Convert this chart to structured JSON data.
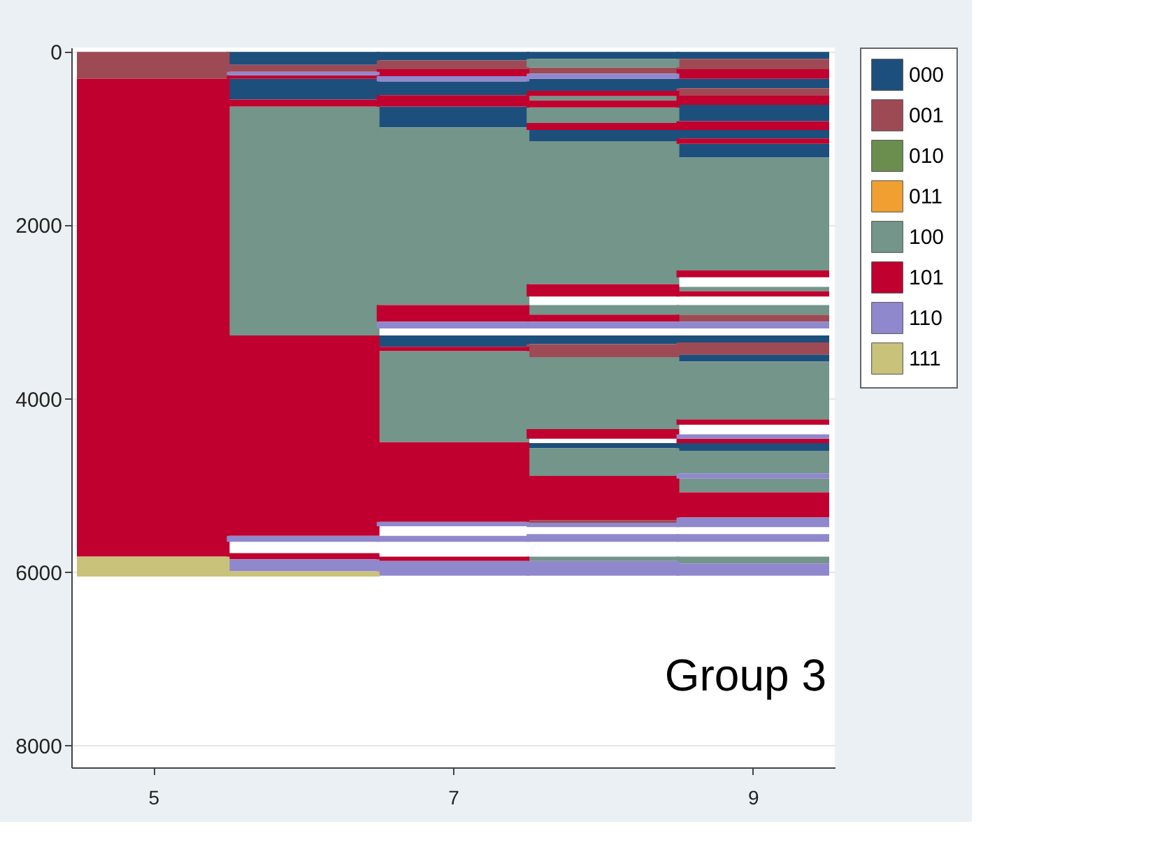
{
  "chart_data": {
    "type": "bar",
    "annotations": [
      "Group 3"
    ],
    "xlim": [
      4.5,
      9.5
    ],
    "xticks": [
      5,
      7,
      9
    ],
    "ylim": [
      8250,
      -50
    ],
    "yticks": [
      0,
      2000,
      4000,
      6000,
      8000
    ],
    "grid": "y",
    "legend": "right",
    "series": [
      {
        "name": "000",
        "color": "#1d4f7c",
        "x": [
          6,
          7,
          8,
          9
        ],
        "base": [
          0,
          0,
          0,
          0
        ],
        "values": [
          150,
          100,
          80,
          80
        ]
      },
      {
        "color": "#1d4f7c",
        "x": [
          6,
          7,
          8,
          9
        ],
        "base": [
          310,
          340,
          310,
          310
        ],
        "values": [
          240,
          160,
          140,
          110
        ]
      },
      {
        "color": "#1d4f7c",
        "x": [
          7,
          8,
          9
        ],
        "base": [
          630,
          900,
          610
        ],
        "values": [
          240,
          130,
          190
        ]
      },
      {
        "color": "#1d4f7c",
        "x": [
          7,
          8,
          9
        ],
        "base": [
          3270,
          3270,
          900
        ],
        "values": [
          130,
          100,
          100
        ]
      },
      {
        "color": "#1d4f7c",
        "x": [
          8,
          9
        ],
        "base": [
          4510,
          1060
        ],
        "values": [
          60,
          160
        ]
      },
      {
        "color": "#1d4f7c",
        "x": [
          9
        ],
        "base": [
          3270
        ],
        "values": [
          80
        ]
      },
      {
        "color": "#1d4f7c",
        "x": [
          9
        ],
        "base": [
          3490
        ],
        "values": [
          80
        ]
      },
      {
        "color": "#1d4f7c",
        "x": [
          9
        ],
        "base": [
          4510
        ],
        "values": [
          90
        ]
      },
      {
        "name": "001",
        "color": "#9e4a55",
        "x": [
          5,
          6,
          7,
          8,
          9
        ],
        "base": [
          0,
          150,
          100,
          180,
          80
        ],
        "values": [
          310,
          80,
          100,
          70,
          120
        ]
      },
      {
        "color": "#9e4a55",
        "x": [
          8,
          9
        ],
        "base": [
          3370,
          420
        ],
        "values": [
          150,
          80
        ]
      },
      {
        "color": "#9e4a55",
        "x": [
          8,
          9
        ],
        "base": [
          5400,
          3030
        ],
        "values": [
          30,
          80
        ]
      },
      {
        "color": "#9e4a55",
        "x": [
          9
        ],
        "base": [
          3350
        ],
        "values": [
          140
        ]
      },
      {
        "name": "010",
        "color": "#6b8e4e"
      },
      {
        "name": "011",
        "color": "#f0a030"
      },
      {
        "name": "100",
        "color": "#73958a",
        "x": [
          6,
          7,
          8,
          9
        ],
        "base": [
          630,
          870,
          80,
          1220
        ],
        "values": [
          2640,
          2050,
          100,
          1300
        ]
      },
      {
        "color": "#73958a",
        "x": [
          7,
          8,
          9
        ],
        "base": [
          3450,
          510,
          2710
        ],
        "values": [
          1050,
          50,
          50
        ]
      },
      {
        "color": "#73958a",
        "x": [
          8,
          9
        ],
        "base": [
          640,
          2920
        ],
        "values": [
          180,
          110
        ]
      },
      {
        "color": "#73958a",
        "x": [
          8,
          9
        ],
        "base": [
          1030,
          3570
        ],
        "values": [
          1650,
          670
        ]
      },
      {
        "color": "#73958a",
        "x": [
          8,
          9
        ],
        "base": [
          2920,
          4600
        ],
        "values": [
          110,
          260
        ]
      },
      {
        "color": "#73958a",
        "x": [
          8,
          9
        ],
        "base": [
          3520,
          4920
        ],
        "values": [
          830,
          160
        ]
      },
      {
        "color": "#73958a",
        "x": [
          8,
          9
        ],
        "base": [
          4570,
          5820
        ],
        "values": [
          320,
          80
        ]
      },
      {
        "color": "#73958a",
        "x": [
          8
        ],
        "base": [
          5820
        ],
        "values": [
          50
        ]
      },
      {
        "name": "101",
        "color": "#c0002e",
        "x": [
          5,
          6,
          7,
          8,
          9
        ],
        "base": [
          310,
          270,
          200,
          450,
          200
        ],
        "values": [
          5510,
          40,
          80,
          60,
          110
        ]
      },
      {
        "color": "#c0002e",
        "x": [
          6,
          7,
          8,
          9
        ],
        "base": [
          550,
          500,
          560,
          500
        ],
        "values": [
          80,
          130,
          80,
          110
        ]
      },
      {
        "color": "#c0002e",
        "x": [
          6,
          7,
          8,
          9
        ],
        "base": [
          3270,
          2920,
          820,
          800
        ],
        "values": [
          2310,
          190,
          80,
          100
        ]
      },
      {
        "color": "#c0002e",
        "x": [
          6,
          7,
          8,
          9
        ],
        "base": [
          5780,
          3400,
          2680,
          1000
        ],
        "values": [
          70,
          50,
          140,
          60
        ]
      },
      {
        "color": "#c0002e",
        "x": [
          7,
          8,
          9
        ],
        "base": [
          4500,
          3030,
          2520
        ],
        "values": [
          920,
          80,
          80
        ]
      },
      {
        "color": "#c0002e",
        "x": [
          7,
          8,
          9
        ],
        "base": [
          5820,
          4350,
          2760
        ],
        "values": [
          50,
          110,
          60
        ]
      },
      {
        "color": "#c0002e",
        "x": [
          8,
          9
        ],
        "base": [
          4890,
          4240
        ],
        "values": [
          510,
          60
        ]
      },
      {
        "color": "#c0002e",
        "x": [
          9
        ],
        "base": [
          4460
        ],
        "values": [
          50
        ]
      },
      {
        "color": "#c0002e",
        "x": [
          9
        ],
        "base": [
          5080
        ],
        "values": [
          290
        ]
      },
      {
        "name": "110",
        "color": "#9088cc",
        "x": [
          6,
          7,
          8,
          9
        ],
        "base": [
          230,
          280,
          250,
          3110
        ],
        "values": [
          40,
          60,
          60,
          80
        ]
      },
      {
        "color": "#9088cc",
        "x": [
          6,
          7,
          8,
          9
        ],
        "base": [
          5580,
          3110,
          3110,
          4410
        ],
        "values": [
          70,
          80,
          80,
          50
        ]
      },
      {
        "color": "#9088cc",
        "x": [
          6,
          7,
          8,
          9
        ],
        "base": [
          5850,
          5420,
          5430,
          4860
        ],
        "values": [
          140,
          50,
          50,
          60
        ]
      },
      {
        "color": "#9088cc",
        "x": [
          7,
          8,
          9
        ],
        "base": [
          5580,
          5560,
          5370
        ],
        "values": [
          70,
          90,
          110
        ]
      },
      {
        "color": "#9088cc",
        "x": [
          7,
          8,
          9
        ],
        "base": [
          5870,
          5870,
          5560
        ],
        "values": [
          170,
          170,
          90
        ]
      },
      {
        "color": "#9088cc",
        "x": [
          9
        ],
        "base": [
          5900
        ],
        "values": [
          140
        ]
      },
      {
        "name": "111",
        "color": "#c9c27b",
        "x": [
          5,
          6
        ],
        "base": [
          5820,
          5990
        ],
        "values": [
          230,
          60
        ]
      }
    ]
  }
}
